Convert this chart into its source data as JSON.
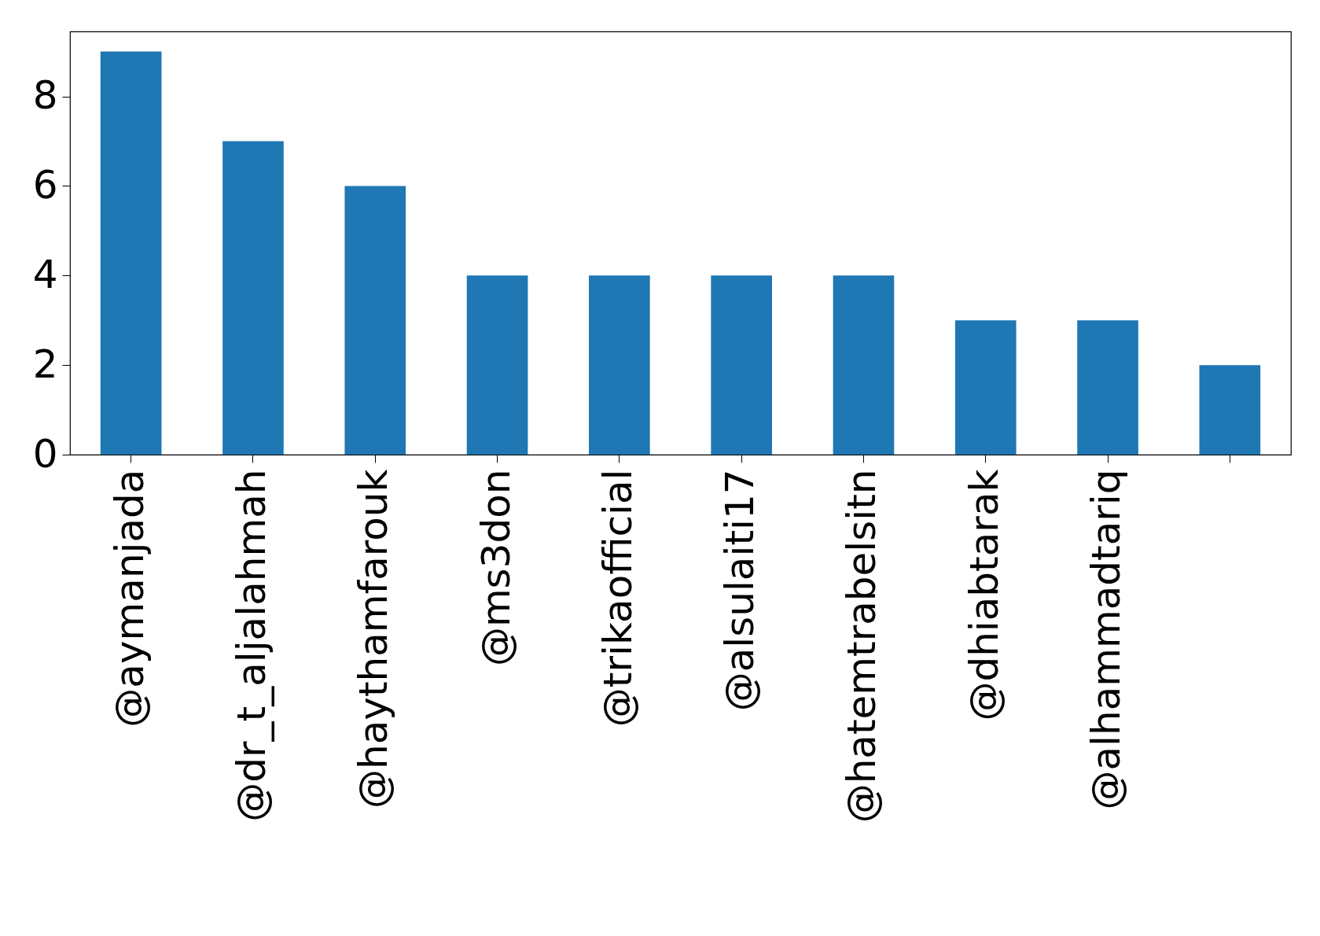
{
  "chart_data": {
    "type": "bar",
    "categories": [
      "@aymanjada",
      "@dr_t_aljalahmah",
      "@haythamfarouk",
      "@ms3don",
      "@trikaofficial",
      "@alsulaiti17",
      "@hatemtrabelsitn",
      "@dhiabtarak",
      "@alhammadtariq",
      null
    ],
    "values": [
      9,
      7,
      6,
      4,
      4,
      4,
      4,
      3,
      3,
      2
    ],
    "color": "#1f77b4",
    "ylim": [
      0,
      9.45
    ],
    "yticks": [
      0,
      2,
      4,
      6,
      8
    ]
  }
}
